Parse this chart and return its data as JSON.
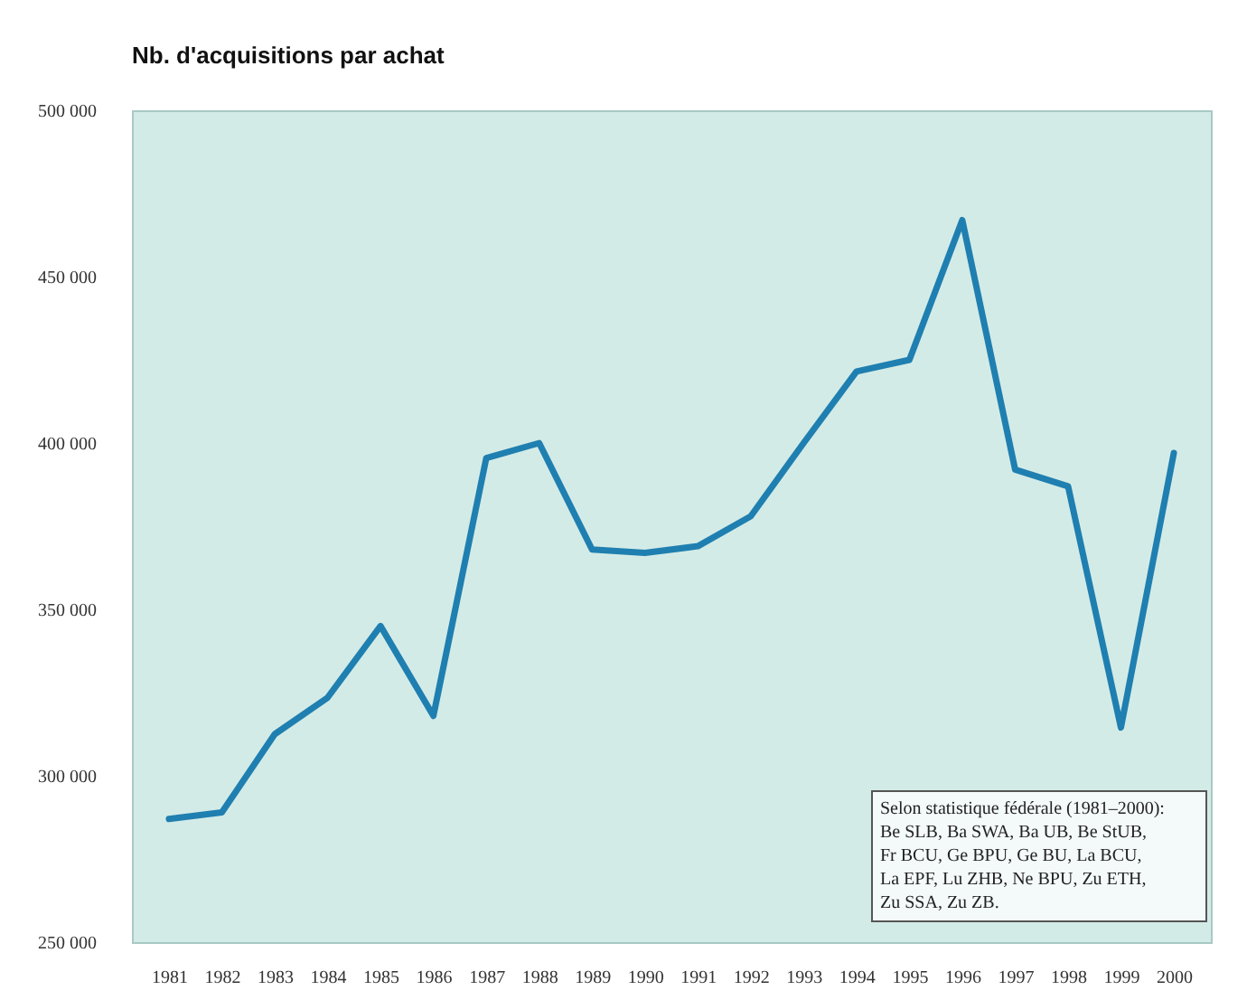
{
  "chart_data": {
    "type": "line",
    "title": "Nb. d'acquisitions par achat",
    "categories": [
      "1981",
      "1982",
      "1983",
      "1984",
      "1985",
      "1986",
      "1987",
      "1988",
      "1989",
      "1990",
      "1991",
      "1992",
      "1993",
      "1994",
      "1995",
      "1996",
      "1997",
      "1998",
      "1999",
      "2000"
    ],
    "series": [
      {
        "color": "#1f7fb0",
        "values": [
          287000,
          289000,
          312500,
          323500,
          345000,
          318000,
          395500,
          400000,
          368000,
          367000,
          369000,
          378000,
          400000,
          421500,
          425000,
          467000,
          392000,
          387000,
          314500,
          397000
        ]
      }
    ],
    "ylim": [
      250000,
      500000
    ],
    "yticks": [
      {
        "value": 250000,
        "label": "250 000"
      },
      {
        "value": 300000,
        "label": "300 000"
      },
      {
        "value": 350000,
        "label": "350 000"
      },
      {
        "value": 400000,
        "label": "400 000"
      },
      {
        "value": 450000,
        "label": "450 000"
      },
      {
        "value": 500000,
        "label": "500 000"
      }
    ],
    "grid": false,
    "marker": "none",
    "line_style": "solid",
    "annotations": [
      "Selon statistique fédérale (1981–2000):\nBe SLB, Ba SWA, Ba UB, Be StUB,\nFr BCU, Ge BPU, Ge BU, La BCU,\nLa EPF, Lu ZHB, Ne BPU, Zu ETH,\nZu SSA, Zu ZB."
    ]
  }
}
